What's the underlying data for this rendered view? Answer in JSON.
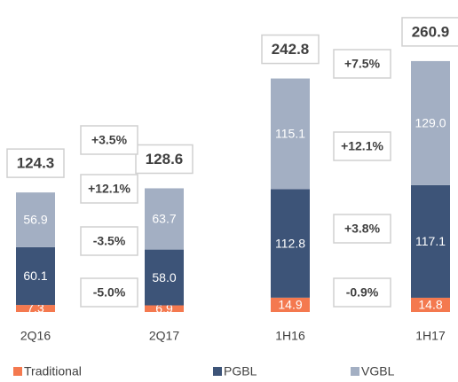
{
  "chart_data": {
    "type": "stacked_bar",
    "categories": [
      "2Q16",
      "2Q17",
      "1H16",
      "1H17"
    ],
    "series": [
      {
        "name": "Traditional",
        "color": "#f4794f",
        "values": [
          7.3,
          6.9,
          14.9,
          14.8
        ],
        "value_labels": [
          "7.3",
          "6.9",
          "14.9",
          "14.8"
        ]
      },
      {
        "name": "PGBL",
        "color": "#3d5478",
        "values": [
          60.1,
          58.0,
          112.8,
          117.1
        ],
        "value_labels": [
          "60.1",
          "58.0",
          "112.8",
          "117.1"
        ]
      },
      {
        "name": "VGBL",
        "color": "#a3afc3",
        "values": [
          56.9,
          63.7,
          115.1,
          129.0
        ],
        "value_labels": [
          "56.9",
          "63.7",
          "115.1",
          "129.0"
        ]
      }
    ],
    "totals": [
      124.3,
      128.6,
      242.8,
      260.9
    ],
    "annotations": [
      [
        "+3.5%",
        "+12.1%",
        "-3.5%",
        "-5.0%"
      ],
      [
        "+7.5%",
        "+12.1%",
        "+3.8%",
        "-0.9%"
      ]
    ],
    "ylim": [
      0,
      300
    ]
  }
}
